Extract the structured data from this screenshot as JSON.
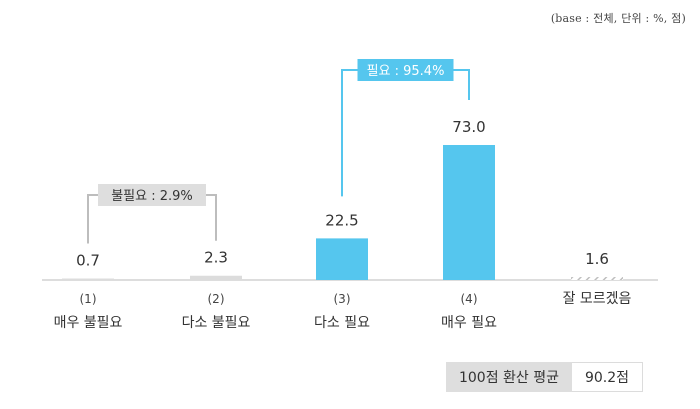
{
  "base_note": "(base : 전체, 단위 : %, 점)",
  "chart_data": {
    "type": "bar",
    "categories": [
      {
        "num": "(1)",
        "label": "매우 불필요"
      },
      {
        "num": "(2)",
        "label": "다소 불필요"
      },
      {
        "num": "(3)",
        "label": "다소 필요"
      },
      {
        "num": "(4)",
        "label": "매우 필요"
      },
      {
        "num": "",
        "label": "잘 모르겠음"
      }
    ],
    "values": [
      0.7,
      2.3,
      22.5,
      73.0,
      1.6
    ],
    "value_labels": [
      "0.7",
      "2.3",
      "22.5",
      "73.0",
      "1.6"
    ],
    "ylim": [
      0,
      100
    ],
    "bar_styles": [
      "gray",
      "gray",
      "blue",
      "blue",
      "hatched"
    ],
    "colors": {
      "blue": "#55c6ee",
      "gray": "#dcdcdc",
      "hatch": "#bdbdbd",
      "group_gray": "#dedede",
      "axis": "#bbbbbb"
    },
    "groups": [
      {
        "label": "불필요 : 2.9%",
        "from": 0,
        "to": 1,
        "color": "gray"
      },
      {
        "label": "필요 : 95.4%",
        "from": 2,
        "to": 3,
        "color": "blue"
      }
    ]
  },
  "summary": {
    "label": "100점 환산 평균",
    "value": "90.2점"
  }
}
